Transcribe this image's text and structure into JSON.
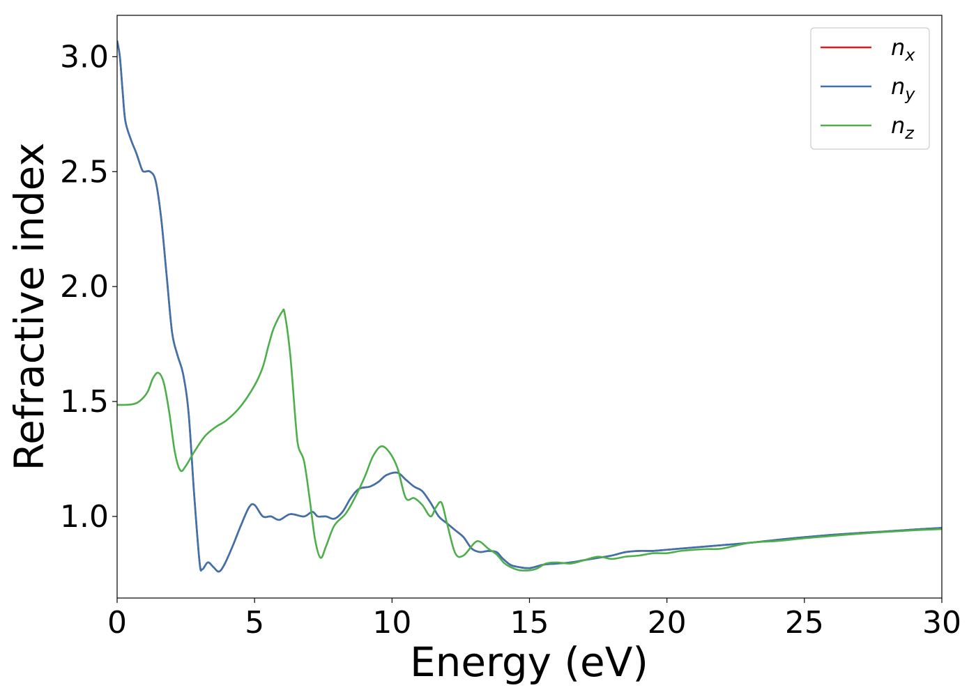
{
  "chart_data": {
    "type": "line",
    "title": "",
    "xlabel": "Energy (eV)",
    "ylabel": "Refractive index",
    "xlim": [
      0,
      30
    ],
    "ylim": [
      0.645,
      3.18
    ],
    "xticks": [
      "0",
      "5",
      "10",
      "15",
      "20",
      "25",
      "30"
    ],
    "yticks": [
      "1.0",
      "1.5",
      "2.0",
      "2.5",
      "3.0"
    ],
    "grid": false,
    "legend_position": "top-right",
    "series": [
      {
        "name": "n",
        "subscript": "x",
        "color": "#e41a1c",
        "points": [
          [
            0,
            3.07
          ],
          [
            0.1,
            3.0
          ],
          [
            0.2,
            2.85
          ],
          [
            0.3,
            2.72
          ],
          [
            0.5,
            2.64
          ],
          [
            0.7,
            2.58
          ],
          [
            0.9,
            2.51
          ],
          [
            1.0,
            2.5
          ],
          [
            1.2,
            2.5
          ],
          [
            1.4,
            2.46
          ],
          [
            1.6,
            2.3
          ],
          [
            1.8,
            2.05
          ],
          [
            2.0,
            1.8
          ],
          [
            2.2,
            1.7
          ],
          [
            2.4,
            1.62
          ],
          [
            2.6,
            1.45
          ],
          [
            2.8,
            1.1
          ],
          [
            3.0,
            0.8
          ],
          [
            3.1,
            0.77
          ],
          [
            3.3,
            0.8
          ],
          [
            3.5,
            0.78
          ],
          [
            3.7,
            0.76
          ],
          [
            3.9,
            0.79
          ],
          [
            4.2,
            0.87
          ],
          [
            4.5,
            0.96
          ],
          [
            4.8,
            1.04
          ],
          [
            5.0,
            1.05
          ],
          [
            5.3,
            1.0
          ],
          [
            5.6,
            1.0
          ],
          [
            5.9,
            0.985
          ],
          [
            6.3,
            1.01
          ],
          [
            6.8,
            1.0
          ],
          [
            7.1,
            1.02
          ],
          [
            7.3,
            1.0
          ],
          [
            7.6,
            1.0
          ],
          [
            7.9,
            0.99
          ],
          [
            8.2,
            1.02
          ],
          [
            8.5,
            1.08
          ],
          [
            8.8,
            1.12
          ],
          [
            9.2,
            1.13
          ],
          [
            9.5,
            1.15
          ],
          [
            9.8,
            1.18
          ],
          [
            10.2,
            1.19
          ],
          [
            10.5,
            1.16
          ],
          [
            10.8,
            1.13
          ],
          [
            11.1,
            1.11
          ],
          [
            11.4,
            1.06
          ],
          [
            11.7,
            1.0
          ],
          [
            12.0,
            0.97
          ],
          [
            12.3,
            0.94
          ],
          [
            12.6,
            0.91
          ],
          [
            12.9,
            0.86
          ],
          [
            13.2,
            0.845
          ],
          [
            13.5,
            0.85
          ],
          [
            13.8,
            0.845
          ],
          [
            14.0,
            0.82
          ],
          [
            14.3,
            0.79
          ],
          [
            14.6,
            0.78
          ],
          [
            15.0,
            0.775
          ],
          [
            15.5,
            0.79
          ],
          [
            16.0,
            0.795
          ],
          [
            16.5,
            0.8
          ],
          [
            17.0,
            0.81
          ],
          [
            17.5,
            0.82
          ],
          [
            18.0,
            0.83
          ],
          [
            18.5,
            0.845
          ],
          [
            19.0,
            0.85
          ],
          [
            19.5,
            0.85
          ],
          [
            20.0,
            0.855
          ],
          [
            20.5,
            0.86
          ],
          [
            21.0,
            0.865
          ],
          [
            21.5,
            0.87
          ],
          [
            22.0,
            0.875
          ],
          [
            23.0,
            0.885
          ],
          [
            24.0,
            0.898
          ],
          [
            25.0,
            0.91
          ],
          [
            26.0,
            0.92
          ],
          [
            27.0,
            0.928
          ],
          [
            28.0,
            0.935
          ],
          [
            29.0,
            0.943
          ],
          [
            30.0,
            0.95
          ]
        ]
      },
      {
        "name": "n",
        "subscript": "y",
        "color": "#3b73ae",
        "points": [
          [
            0,
            3.07
          ],
          [
            0.1,
            3.0
          ],
          [
            0.2,
            2.85
          ],
          [
            0.3,
            2.72
          ],
          [
            0.5,
            2.64
          ],
          [
            0.7,
            2.58
          ],
          [
            0.9,
            2.51
          ],
          [
            1.0,
            2.5
          ],
          [
            1.2,
            2.5
          ],
          [
            1.4,
            2.46
          ],
          [
            1.6,
            2.3
          ],
          [
            1.8,
            2.05
          ],
          [
            2.0,
            1.8
          ],
          [
            2.2,
            1.7
          ],
          [
            2.4,
            1.62
          ],
          [
            2.6,
            1.45
          ],
          [
            2.8,
            1.1
          ],
          [
            3.0,
            0.8
          ],
          [
            3.1,
            0.77
          ],
          [
            3.3,
            0.8
          ],
          [
            3.5,
            0.78
          ],
          [
            3.7,
            0.76
          ],
          [
            3.9,
            0.79
          ],
          [
            4.2,
            0.87
          ],
          [
            4.5,
            0.96
          ],
          [
            4.8,
            1.04
          ],
          [
            5.0,
            1.05
          ],
          [
            5.3,
            1.0
          ],
          [
            5.6,
            1.0
          ],
          [
            5.9,
            0.985
          ],
          [
            6.3,
            1.01
          ],
          [
            6.8,
            1.0
          ],
          [
            7.1,
            1.02
          ],
          [
            7.3,
            1.0
          ],
          [
            7.6,
            1.0
          ],
          [
            7.9,
            0.99
          ],
          [
            8.2,
            1.02
          ],
          [
            8.5,
            1.08
          ],
          [
            8.8,
            1.12
          ],
          [
            9.2,
            1.13
          ],
          [
            9.5,
            1.15
          ],
          [
            9.8,
            1.18
          ],
          [
            10.2,
            1.19
          ],
          [
            10.5,
            1.16
          ],
          [
            10.8,
            1.13
          ],
          [
            11.1,
            1.11
          ],
          [
            11.4,
            1.06
          ],
          [
            11.7,
            1.0
          ],
          [
            12.0,
            0.97
          ],
          [
            12.3,
            0.94
          ],
          [
            12.6,
            0.91
          ],
          [
            12.9,
            0.86
          ],
          [
            13.2,
            0.845
          ],
          [
            13.5,
            0.85
          ],
          [
            13.8,
            0.845
          ],
          [
            14.0,
            0.82
          ],
          [
            14.3,
            0.79
          ],
          [
            14.6,
            0.78
          ],
          [
            15.0,
            0.775
          ],
          [
            15.5,
            0.79
          ],
          [
            16.0,
            0.795
          ],
          [
            16.5,
            0.8
          ],
          [
            17.0,
            0.81
          ],
          [
            17.5,
            0.82
          ],
          [
            18.0,
            0.83
          ],
          [
            18.5,
            0.845
          ],
          [
            19.0,
            0.85
          ],
          [
            19.5,
            0.85
          ],
          [
            20.0,
            0.855
          ],
          [
            20.5,
            0.86
          ],
          [
            21.0,
            0.865
          ],
          [
            21.5,
            0.87
          ],
          [
            22.0,
            0.875
          ],
          [
            23.0,
            0.885
          ],
          [
            24.0,
            0.898
          ],
          [
            25.0,
            0.91
          ],
          [
            26.0,
            0.92
          ],
          [
            27.0,
            0.928
          ],
          [
            28.0,
            0.935
          ],
          [
            29.0,
            0.943
          ],
          [
            30.0,
            0.95
          ]
        ]
      },
      {
        "name": "n",
        "subscript": "z",
        "color": "#4daf4a",
        "points": [
          [
            0,
            1.485
          ],
          [
            0.5,
            1.487
          ],
          [
            0.8,
            1.5
          ],
          [
            1.1,
            1.54
          ],
          [
            1.3,
            1.6
          ],
          [
            1.5,
            1.625
          ],
          [
            1.7,
            1.58
          ],
          [
            1.9,
            1.45
          ],
          [
            2.1,
            1.28
          ],
          [
            2.3,
            1.2
          ],
          [
            2.5,
            1.22
          ],
          [
            2.8,
            1.28
          ],
          [
            3.2,
            1.35
          ],
          [
            3.6,
            1.39
          ],
          [
            4.0,
            1.42
          ],
          [
            4.5,
            1.48
          ],
          [
            5.0,
            1.57
          ],
          [
            5.3,
            1.65
          ],
          [
            5.5,
            1.74
          ],
          [
            5.7,
            1.82
          ],
          [
            6.0,
            1.89
          ],
          [
            6.1,
            1.88
          ],
          [
            6.3,
            1.7
          ],
          [
            6.5,
            1.4
          ],
          [
            6.6,
            1.3
          ],
          [
            6.8,
            1.24
          ],
          [
            7.0,
            1.08
          ],
          [
            7.2,
            0.9
          ],
          [
            7.4,
            0.82
          ],
          [
            7.6,
            0.87
          ],
          [
            7.9,
            0.96
          ],
          [
            8.3,
            1.01
          ],
          [
            8.6,
            1.07
          ],
          [
            9.0,
            1.17
          ],
          [
            9.3,
            1.26
          ],
          [
            9.6,
            1.305
          ],
          [
            9.9,
            1.28
          ],
          [
            10.2,
            1.21
          ],
          [
            10.5,
            1.08
          ],
          [
            10.8,
            1.08
          ],
          [
            11.1,
            1.05
          ],
          [
            11.4,
            1.0
          ],
          [
            11.6,
            1.04
          ],
          [
            11.8,
            1.06
          ],
          [
            12.0,
            0.97
          ],
          [
            12.3,
            0.84
          ],
          [
            12.6,
            0.83
          ],
          [
            13.0,
            0.885
          ],
          [
            13.2,
            0.89
          ],
          [
            13.5,
            0.86
          ],
          [
            13.8,
            0.835
          ],
          [
            14.1,
            0.795
          ],
          [
            14.4,
            0.775
          ],
          [
            14.7,
            0.765
          ],
          [
            15.2,
            0.77
          ],
          [
            15.6,
            0.795
          ],
          [
            16.0,
            0.8
          ],
          [
            16.5,
            0.795
          ],
          [
            17.0,
            0.81
          ],
          [
            17.5,
            0.825
          ],
          [
            18.0,
            0.815
          ],
          [
            18.5,
            0.825
          ],
          [
            19.0,
            0.83
          ],
          [
            19.5,
            0.84
          ],
          [
            20.0,
            0.84
          ],
          [
            20.5,
            0.85
          ],
          [
            21.0,
            0.855
          ],
          [
            21.5,
            0.858
          ],
          [
            22.0,
            0.86
          ],
          [
            23.0,
            0.885
          ],
          [
            24.0,
            0.893
          ],
          [
            25.0,
            0.905
          ],
          [
            26.0,
            0.915
          ],
          [
            27.0,
            0.925
          ],
          [
            28.0,
            0.933
          ],
          [
            29.0,
            0.94
          ],
          [
            30.0,
            0.945
          ]
        ]
      }
    ]
  }
}
